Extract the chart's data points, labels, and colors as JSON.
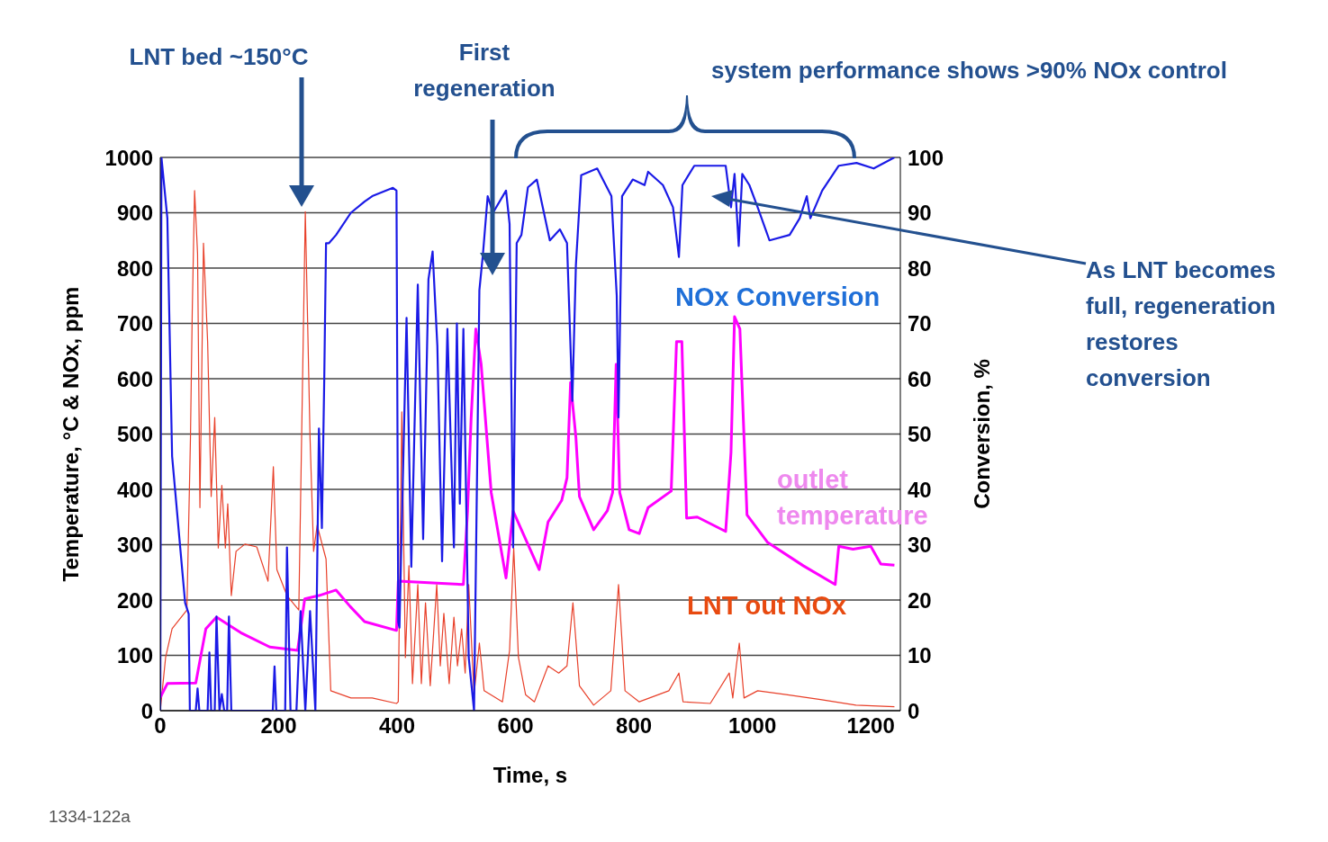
{
  "chart_data": {
    "type": "line",
    "xlabel": "Time, s",
    "ylabel": "Temperature, °C & NOx, ppm",
    "y2label": "Conversion, %",
    "xlim": [
      0,
      1250
    ],
    "xticks": [
      0,
      200,
      400,
      600,
      800,
      1000,
      1200
    ],
    "ylim": [
      0,
      1000
    ],
    "yticks": [
      0,
      100,
      200,
      300,
      400,
      500,
      600,
      700,
      800,
      900,
      1000
    ],
    "y2lim": [
      0,
      100
    ],
    "y2ticks": [
      0,
      10,
      20,
      30,
      40,
      50,
      60,
      70,
      80,
      90,
      100
    ],
    "grid": "y",
    "line_style": "solid",
    "annotations": [
      "LNT bed ~150°C",
      "First regeneration",
      "system performance shows >90% NOx control",
      "As LNT becomes full, regeneration restores conversion",
      "1334-122a"
    ],
    "series": [
      {
        "name": "LNT out NOx",
        "color": "#e8402a",
        "x": [
          0,
          9,
          20,
          45,
          51,
          54,
          58,
          63,
          67,
          73,
          80,
          86,
          92,
          98,
          104,
          110,
          114,
          120,
          128,
          143,
          163,
          182,
          191,
          197,
          214,
          234,
          245,
          253,
          259,
          265,
          280,
          288,
          322,
          358,
          399,
          402,
          408,
          414,
          420,
          426,
          435,
          441,
          448,
          456,
          467,
          473,
          479,
          488,
          496,
          502,
          509,
          515,
          521,
          530,
          539,
          547,
          578,
          590,
          597,
          605,
          617,
          632,
          655,
          673,
          687,
          697,
          708,
          732,
          761,
          774,
          785,
          809,
          859,
          876,
          883,
          929,
          961,
          967,
          973,
          978,
          986,
          1009,
          1057,
          1115,
          1175,
          1240
        ],
        "values": [
          0,
          96,
          148,
          182,
          493,
          719,
          940,
          826,
          367,
          845,
          667,
          387,
          530,
          294,
          407,
          294,
          374,
          208,
          288,
          301,
          296,
          234,
          441,
          255,
          208,
          182,
          902,
          493,
          288,
          335,
          274,
          36,
          23,
          23,
          13,
          16,
          540,
          96,
          262,
          49,
          228,
          49,
          195,
          45,
          228,
          81,
          176,
          49,
          169,
          81,
          148,
          68,
          228,
          29,
          122,
          36,
          16,
          109,
          294,
          96,
          29,
          16,
          81,
          68,
          81,
          195,
          45,
          10,
          36,
          228,
          36,
          16,
          36,
          68,
          16,
          13,
          68,
          23,
          81,
          122,
          23,
          36,
          29,
          20,
          10,
          7
        ]
      },
      {
        "name": "outlet temperature",
        "color": "#ff00ff",
        "x": [
          0,
          12,
          60,
          77,
          95,
          136,
          185,
          232,
          244,
          268,
          297,
          321,
          345,
          399,
          402,
          512,
          519,
          525,
          533,
          542,
          559,
          584,
          596,
          610,
          640,
          655,
          678,
          687,
          693,
          702,
          708,
          732,
          755,
          764,
          770,
          776,
          792,
          809,
          824,
          863,
          872,
          881,
          889,
          907,
          955,
          964,
          970,
          979,
          991,
          1026,
          1086,
          1140,
          1146,
          1170,
          1200,
          1217,
          1240
        ],
        "values": [
          24,
          49,
          50,
          148,
          169,
          141,
          115,
          109,
          202,
          208,
          218,
          188,
          161,
          145,
          234,
          228,
          361,
          527,
          690,
          626,
          394,
          240,
          361,
          327,
          255,
          341,
          380,
          421,
          593,
          494,
          387,
          327,
          361,
          394,
          626,
          394,
          327,
          320,
          367,
          397,
          667,
          667,
          348,
          350,
          324,
          467,
          712,
          690,
          354,
          304,
          262,
          228,
          297,
          292,
          297,
          265,
          263
        ]
      },
      {
        "name": "NOx Conversion",
        "color": "#1a1ae6",
        "axis": "y2",
        "x": [
          0,
          2,
          12,
          20,
          42,
          48,
          50,
          60,
          63,
          66,
          80,
          83,
          86,
          92,
          95,
          100,
          104,
          108,
          113,
          116,
          120,
          190,
          193,
          196,
          211,
          214,
          220,
          230,
          237,
          245,
          253,
          262,
          268,
          273,
          277,
          280,
          285,
          297,
          322,
          345,
          358,
          393,
          399,
          402,
          404,
          416,
          424,
          435,
          444,
          453,
          460,
          468,
          476,
          485,
          496,
          501,
          506,
          512,
          521,
          530,
          539,
          545,
          553,
          562,
          584,
          590,
          596,
          602,
          610,
          621,
          636,
          642,
          658,
          675,
          687,
          696,
          702,
          711,
          738,
          762,
          771,
          774,
          780,
          798,
          818,
          824,
          849,
          866,
          876,
          882,
          902,
          955,
          964,
          970,
          977,
          983,
          995,
          1009,
          1029,
          1063,
          1080,
          1092,
          1098,
          1118,
          1146,
          1176,
          1205,
          1240
        ],
        "values": [
          0,
          100,
          89,
          46,
          19.5,
          17.5,
          0,
          0,
          4,
          0,
          0,
          10.5,
          0,
          0,
          17,
          0,
          3,
          0,
          0,
          17,
          0,
          0,
          8,
          0,
          0,
          29.5,
          0,
          0,
          18,
          0,
          18,
          0,
          51,
          33,
          60,
          84.5,
          84.5,
          86,
          90,
          92,
          93,
          94.5,
          94,
          16,
          15,
          71,
          26,
          77,
          31,
          78,
          83,
          66,
          27,
          69,
          29.5,
          70,
          37.4,
          69,
          9.6,
          0,
          76,
          82.5,
          93,
          90,
          94,
          88,
          29.5,
          84.5,
          86,
          94.6,
          96,
          93,
          85,
          87,
          84.5,
          56,
          80.5,
          96.8,
          98,
          93,
          75,
          53,
          93,
          96,
          95,
          97.4,
          95,
          91,
          82,
          95,
          98.5,
          98.5,
          91,
          97,
          84,
          97,
          95,
          91,
          85,
          86,
          89,
          93,
          89,
          94,
          98.5,
          99,
          98,
          100
        ]
      }
    ]
  }
}
